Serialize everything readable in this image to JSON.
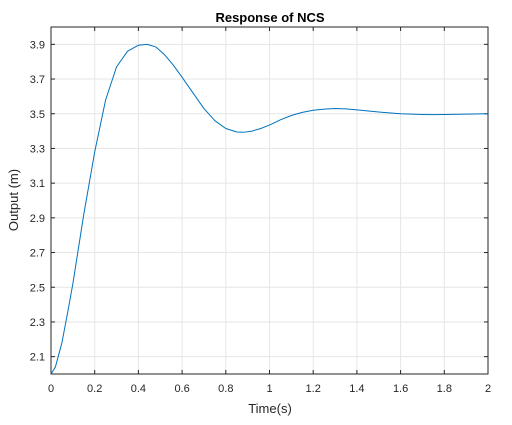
{
  "chart_data": {
    "type": "line",
    "title": "Response of NCS",
    "xlabel": "Time(s)",
    "ylabel": "Output (m)",
    "xlim": [
      0,
      2
    ],
    "ylim": [
      2.0,
      4.0
    ],
    "xticks": [
      0,
      0.2,
      0.4,
      0.6,
      0.8,
      1,
      1.2,
      1.4,
      1.6,
      1.8,
      2
    ],
    "xtick_labels": [
      "0",
      "0.2",
      "0.4",
      "0.6",
      "0.8",
      "1",
      "1.2",
      "1.4",
      "1.6",
      "1.8",
      "2"
    ],
    "yticks": [
      2.1,
      2.3,
      2.5,
      2.7,
      2.9,
      3.1,
      3.3,
      3.5,
      3.7,
      3.9
    ],
    "ytick_labels": [
      "2.1",
      "2.3",
      "2.5",
      "2.7",
      "2.9",
      "3.1",
      "3.3",
      "3.5",
      "3.7",
      "3.9"
    ],
    "grid": true,
    "series": [
      {
        "color": "#0072BD",
        "x": [
          0,
          0.02,
          0.05,
          0.08,
          0.1,
          0.15,
          0.2,
          0.25,
          0.3,
          0.35,
          0.4,
          0.44,
          0.48,
          0.52,
          0.56,
          0.6,
          0.65,
          0.7,
          0.75,
          0.8,
          0.85,
          0.88,
          0.92,
          0.96,
          1.0,
          1.05,
          1.1,
          1.15,
          1.2,
          1.25,
          1.3,
          1.35,
          1.4,
          1.5,
          1.6,
          1.7,
          1.75,
          1.8,
          1.9,
          2.0
        ],
        "y": [
          2.0,
          2.04,
          2.18,
          2.38,
          2.52,
          2.92,
          3.28,
          3.58,
          3.77,
          3.86,
          3.895,
          3.9,
          3.885,
          3.84,
          3.78,
          3.71,
          3.62,
          3.53,
          3.46,
          3.415,
          3.395,
          3.393,
          3.4,
          3.415,
          3.435,
          3.465,
          3.49,
          3.508,
          3.52,
          3.527,
          3.53,
          3.528,
          3.522,
          3.51,
          3.5,
          3.496,
          3.495,
          3.496,
          3.498,
          3.5
        ]
      }
    ]
  }
}
